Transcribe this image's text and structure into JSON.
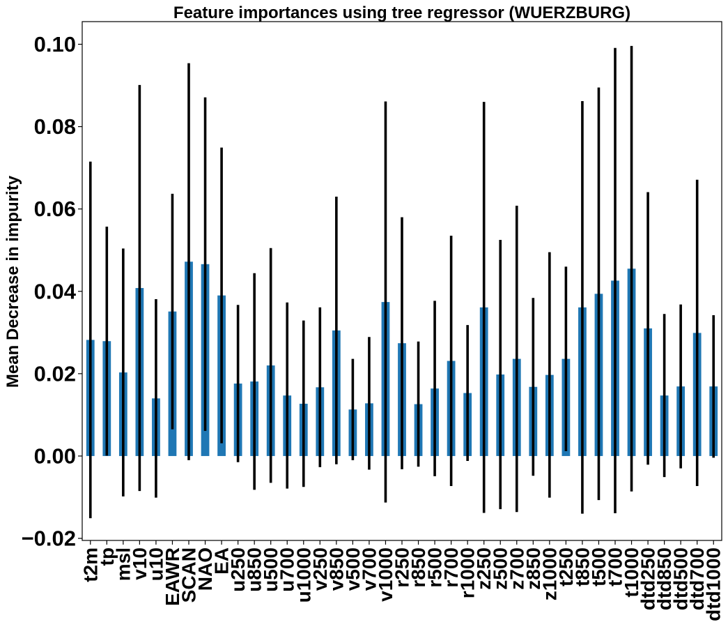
{
  "chart_data": {
    "type": "bar",
    "title": "Feature importances using tree regressor (WUERZBURG)",
    "ylabel": "Mean Decrease in impurity",
    "xlabel": "",
    "ylim": [
      -0.0205,
      0.1055
    ],
    "yticks": [
      -0.02,
      0.0,
      0.02,
      0.04,
      0.06,
      0.08,
      0.1
    ],
    "ytick_labels": [
      "−0.02",
      "0.00",
      "0.02",
      "0.04",
      "0.06",
      "0.08",
      "0.10"
    ],
    "bar_color": "#1f77b4",
    "error_color": "#000000",
    "grid": false,
    "categories": [
      "t2m",
      "tp",
      "msl",
      "v10",
      "u10",
      "EAWR",
      "SCAN",
      "NAO",
      "EA",
      "u250",
      "u850",
      "u500",
      "u700",
      "u1000",
      "v250",
      "v850",
      "v500",
      "v700",
      "v1000",
      "r250",
      "r850",
      "r500",
      "r700",
      "r1000",
      "z250",
      "z500",
      "z700",
      "z850",
      "z1000",
      "t250",
      "t850",
      "t500",
      "t700",
      "t1000",
      "dtd250",
      "dtd850",
      "dtd500",
      "dtd700",
      "dtd1000"
    ],
    "values": [
      0.0282,
      0.0279,
      0.0203,
      0.0408,
      0.014,
      0.0351,
      0.0472,
      0.0466,
      0.039,
      0.0176,
      0.0181,
      0.022,
      0.0147,
      0.0127,
      0.0167,
      0.0305,
      0.0113,
      0.0128,
      0.0374,
      0.0274,
      0.0126,
      0.0164,
      0.0231,
      0.0153,
      0.0361,
      0.0198,
      0.0236,
      0.0168,
      0.0197,
      0.0236,
      0.0361,
      0.0394,
      0.0426,
      0.0455,
      0.031,
      0.0147,
      0.0169,
      0.0299,
      0.0169
    ],
    "errors": [
      0.0433,
      0.0278,
      0.0301,
      0.0493,
      0.0241,
      0.0286,
      0.0482,
      0.0405,
      0.0359,
      0.0191,
      0.0263,
      0.0285,
      0.0226,
      0.0202,
      0.0194,
      0.0325,
      0.0123,
      0.0161,
      0.0487,
      0.0306,
      0.0152,
      0.0213,
      0.0304,
      0.0165,
      0.0499,
      0.0327,
      0.0372,
      0.0216,
      0.0298,
      0.0224,
      0.0501,
      0.0501,
      0.0565,
      0.0541,
      0.0331,
      0.0198,
      0.0199,
      0.0372,
      0.0173
    ]
  }
}
